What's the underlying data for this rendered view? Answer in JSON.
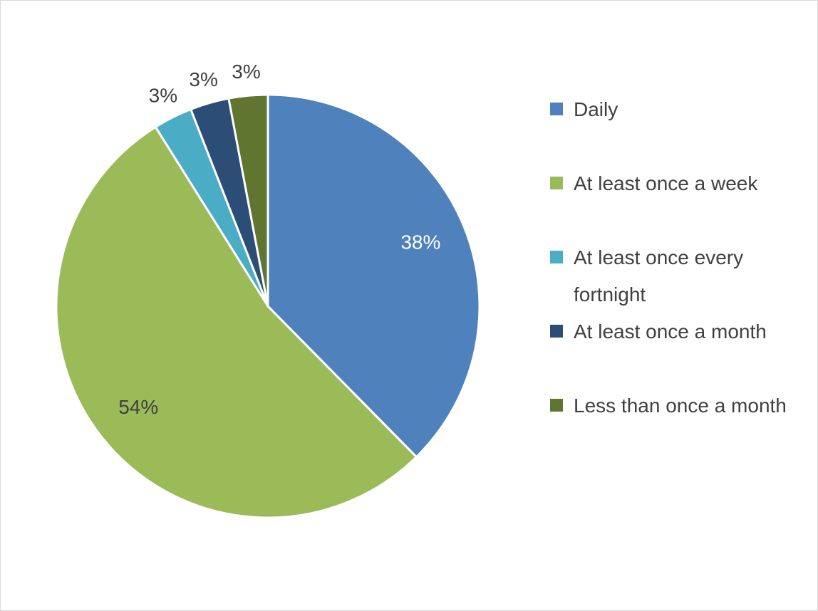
{
  "chart_data": {
    "type": "pie",
    "title": "",
    "categories": [
      "Daily",
      "At least once a week",
      "At least once every fortnight",
      "At least once a month",
      "Less than once a month"
    ],
    "values": [
      38,
      54,
      3,
      3,
      3
    ],
    "data_labels": [
      "38%",
      "54%",
      "3%",
      "3%",
      "3%"
    ],
    "colors": [
      "#4f81bd",
      "#9bbb59",
      "#4bacc6",
      "#2c4d75",
      "#5f7530"
    ],
    "label_colors": [
      "#ffffff",
      "#404040",
      "#404040",
      "#404040",
      "#404040"
    ],
    "legend_position": "right",
    "start_angle": "top, clockwise"
  }
}
